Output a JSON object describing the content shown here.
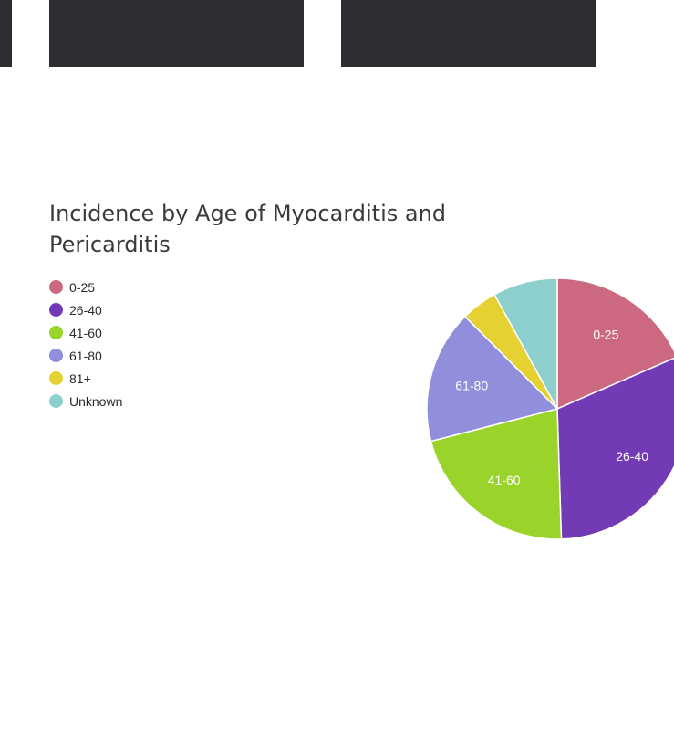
{
  "chart_data": {
    "type": "pie",
    "title": "Incidence by Age of Myocarditis and Pericarditis",
    "legend_position": "left",
    "categories": [
      "0-25",
      "26-40",
      "41-60",
      "61-80",
      "81+",
      "Unknown"
    ],
    "values": [
      18.5,
      31,
      21.5,
      16.5,
      4.5,
      8
    ],
    "colors": [
      "#cc6981",
      "#733ab6",
      "#9ad32a",
      "#918fdc",
      "#e5d232",
      "#8ccfcc"
    ],
    "slice_labels": [
      "0-25",
      "26-40",
      "41-60",
      "61-80",
      "",
      ""
    ]
  }
}
